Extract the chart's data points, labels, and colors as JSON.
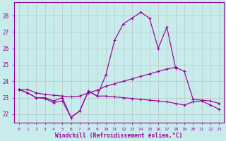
{
  "xlabel": "Windchill (Refroidissement éolien,°C)",
  "bg_color": "#c8ecec",
  "line_color": "#990099",
  "grid_color": "#b0b0b0",
  "hours": [
    0,
    1,
    2,
    3,
    4,
    5,
    6,
    7,
    8,
    9,
    10,
    11,
    12,
    13,
    14,
    15,
    16,
    17,
    18,
    19,
    20,
    21,
    22,
    23
  ],
  "y_main": [
    23.5,
    23.3,
    23.0,
    23.0,
    22.8,
    23.0,
    21.8,
    22.2,
    23.4,
    23.1,
    24.4,
    26.5,
    27.5,
    27.85,
    28.2,
    27.85,
    26.0,
    27.3,
    24.8,
    null,
    null,
    null,
    null,
    null
  ],
  "y_rise": [
    23.5,
    23.5,
    23.3,
    23.2,
    23.15,
    23.1,
    23.05,
    23.1,
    23.3,
    23.45,
    23.7,
    23.85,
    24.0,
    24.15,
    24.3,
    24.45,
    24.6,
    24.75,
    24.85,
    24.6,
    22.9,
    22.85,
    22.8,
    22.65
  ],
  "y_flat": [
    23.5,
    23.3,
    23.0,
    22.95,
    22.7,
    22.8,
    21.8,
    22.2,
    23.4,
    23.1,
    23.1,
    23.05,
    23.0,
    22.95,
    22.9,
    22.85,
    22.8,
    22.75,
    22.65,
    22.55,
    22.75,
    22.8,
    22.55,
    22.3
  ],
  "ylim": [
    21.5,
    28.8
  ],
  "yticks": [
    22,
    23,
    24,
    25,
    26,
    27,
    28
  ]
}
